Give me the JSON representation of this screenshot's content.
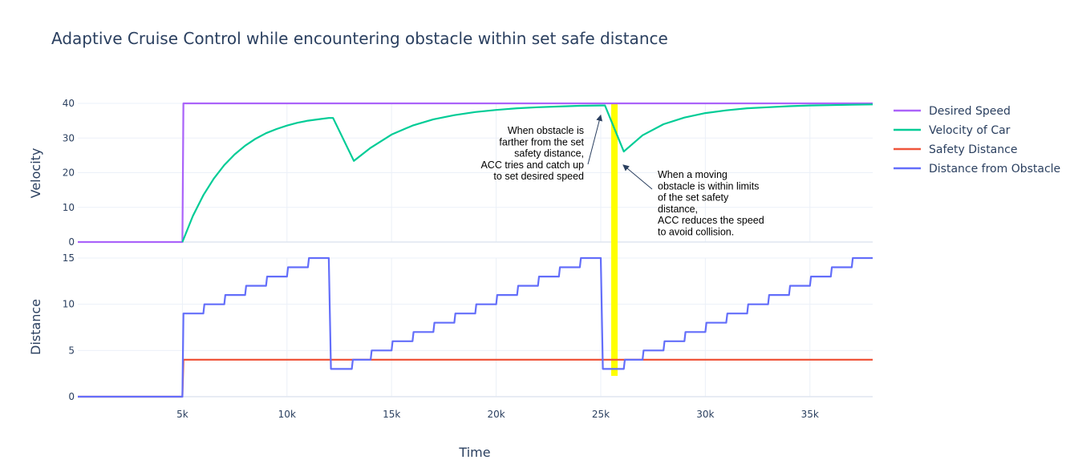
{
  "chart_data": {
    "type": "line",
    "title": "Adaptive Cruise Control while encountering obstacle within set safe distance",
    "xlabel": "Time",
    "x_ticks": [
      {
        "value": 5000,
        "label": "5k"
      },
      {
        "value": 10000,
        "label": "10k"
      },
      {
        "value": 15000,
        "label": "15k"
      },
      {
        "value": 20000,
        "label": "20k"
      },
      {
        "value": 25000,
        "label": "25k"
      },
      {
        "value": 30000,
        "label": "30k"
      },
      {
        "value": 35000,
        "label": "35k"
      }
    ],
    "xlim": [
      0,
      38000
    ],
    "legend_position": "right",
    "grid": true,
    "subplots": [
      {
        "id": "velocity",
        "ylabel": "Velocity",
        "ylim": [
          0,
          40
        ],
        "y_ticks": [
          0,
          10,
          20,
          30,
          40
        ],
        "series": [
          {
            "name": "Desired Speed",
            "color": "#ab63fa",
            "x": [
              0,
              5000,
              5050,
              38000
            ],
            "y": [
              0,
              0,
              40,
              40
            ]
          },
          {
            "name": "Velocity of Car",
            "color": "#00cc96",
            "x": [
              5000,
              5500,
              6000,
              6500,
              7000,
              7500,
              8000,
              8500,
              9000,
              9500,
              10000,
              10500,
              11000,
              11500,
              12000,
              12200,
              13200,
              14000,
              15000,
              16000,
              17000,
              18000,
              19000,
              20000,
              21000,
              22000,
              23000,
              24000,
              25000,
              25200,
              26100,
              27000,
              28000,
              29000,
              30000,
              31000,
              32000,
              33000,
              34000,
              35000,
              36000,
              37000,
              38000
            ],
            "y": [
              0,
              7.5,
              13.5,
              18.3,
              22.2,
              25.3,
              27.8,
              29.8,
              31.4,
              32.6,
              33.6,
              34.4,
              35.0,
              35.4,
              35.8,
              35.8,
              23.4,
              27.2,
              31.0,
              33.6,
              35.4,
              36.6,
              37.5,
              38.1,
              38.6,
              38.9,
              39.1,
              39.3,
              39.4,
              39.4,
              26.1,
              30.8,
              34.0,
              35.9,
              37.2,
              38.0,
              38.6,
              38.9,
              39.2,
              39.4,
              39.5,
              39.6,
              39.7
            ]
          },
          {
            "name": "Safety Distance",
            "color": "#ef553b",
            "show_in_legend": true,
            "x": [],
            "y": []
          },
          {
            "name": "Distance from Obstacle",
            "color": "#636efa",
            "show_in_legend": true,
            "x": [],
            "y": []
          }
        ]
      },
      {
        "id": "distance",
        "ylabel": "Distance",
        "ylim": [
          0,
          15
        ],
        "y_ticks": [
          0,
          5,
          10,
          15
        ],
        "series": [
          {
            "name": "Safety Distance",
            "color": "#ef553b",
            "x": [
              0,
              5000,
              5050,
              38000
            ],
            "y": [
              0,
              0,
              4,
              4
            ]
          },
          {
            "name": "Distance from Obstacle",
            "color": "#636efa",
            "x": [
              0,
              5000,
              5050,
              6000,
              6050,
              7000,
              7050,
              8000,
              8050,
              9000,
              9050,
              10000,
              10050,
              11000,
              11050,
              12000,
              12100,
              13100,
              13150,
              14000,
              14050,
              15000,
              15050,
              16000,
              16050,
              17000,
              17050,
              18000,
              18050,
              19000,
              19050,
              20000,
              20050,
              21000,
              21050,
              22000,
              22050,
              23000,
              23050,
              24000,
              24050,
              25000,
              25100,
              26100,
              26150,
              27000,
              27050,
              28000,
              28050,
              29000,
              29050,
              30000,
              30050,
              31000,
              31050,
              32000,
              32050,
              33000,
              33050,
              34000,
              34050,
              35000,
              35050,
              36000,
              36050,
              37000,
              37050,
              38000
            ],
            "y": [
              0,
              0,
              9,
              9,
              10,
              10,
              11,
              11,
              12,
              12,
              13,
              13,
              14,
              14,
              15,
              15,
              3,
              3,
              4,
              4,
              5,
              5,
              6,
              6,
              7,
              7,
              8,
              8,
              9,
              9,
              10,
              10,
              11,
              11,
              12,
              12,
              13,
              13,
              14,
              14,
              15,
              15,
              3,
              3,
              4,
              4,
              5,
              5,
              6,
              6,
              7,
              7,
              8,
              8,
              9,
              9,
              10,
              10,
              11,
              11,
              12,
              12,
              13,
              13,
              14,
              14,
              15,
              15
            ]
          }
        ]
      }
    ],
    "legend": [
      {
        "name": "Desired Speed",
        "color": "#ab63fa"
      },
      {
        "name": "Velocity of Car",
        "color": "#00cc96"
      },
      {
        "name": "Safety Distance",
        "color": "#ef553b"
      },
      {
        "name": "Distance from Obstacle",
        "color": "#636efa"
      }
    ],
    "highlight_band": {
      "x_start": 25500,
      "x_end": 25800,
      "color": "#ffff00"
    },
    "annotations": [
      {
        "id": "catch-up",
        "lines": [
          "When obstacle is",
          "farther from the set",
          "safety distance,",
          "ACC tries and catch up",
          "to set desired speed"
        ],
        "align": "right",
        "target": {
          "x": 25000,
          "y": 39.4
        }
      },
      {
        "id": "reduce",
        "lines": [
          "When a moving",
          "obstacle is within limits",
          "of the set safety",
          "distance,",
          "ACC reduces the speed",
          "to avoid collision."
        ],
        "align": "left",
        "target": {
          "x": 25800,
          "y": 16
        }
      }
    ]
  }
}
